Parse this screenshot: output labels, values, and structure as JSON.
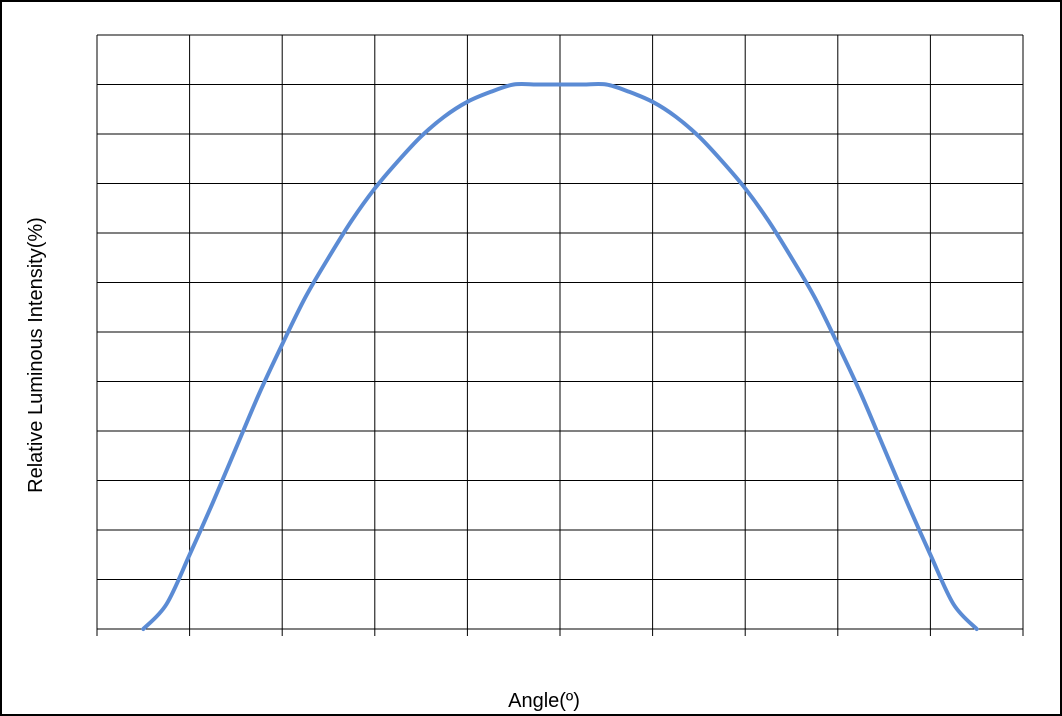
{
  "chart_data": {
    "type": "line",
    "title": "",
    "xlabel": "Angle(º)",
    "ylabel": "Relative Luminous Intensity(%)",
    "xlim": [
      -100,
      100
    ],
    "ylim": [
      0,
      120
    ],
    "x_gridlines": [
      -100,
      -80,
      -60,
      -40,
      -20,
      0,
      20,
      40,
      60,
      80,
      100
    ],
    "y_gridlines": [
      0,
      10,
      20,
      30,
      40,
      50,
      60,
      70,
      80,
      90,
      100,
      110,
      120
    ],
    "grid": true,
    "legend": "none",
    "series": [
      {
        "color": "#5b8bd4",
        "x": [
          -90,
          -85,
          -80,
          -75,
          -70,
          -65,
          -60,
          -55,
          -50,
          -45,
          -40,
          -35,
          -30,
          -25,
          -20,
          -15,
          -10,
          -5,
          0,
          5,
          10,
          15,
          20,
          25,
          30,
          35,
          40,
          45,
          50,
          55,
          60,
          65,
          70,
          75,
          80,
          85,
          90
        ],
        "y": [
          0,
          5,
          15,
          25.5,
          36.5,
          47.5,
          57.5,
          67,
          75,
          82.5,
          89,
          94.5,
          99.5,
          103.5,
          106.5,
          108.5,
          110,
          110,
          110,
          110,
          110,
          108.5,
          106.5,
          103.5,
          99.5,
          94.5,
          89,
          82.5,
          75,
          67,
          57.5,
          47.5,
          36.5,
          25.5,
          15,
          5,
          0
        ]
      }
    ]
  }
}
